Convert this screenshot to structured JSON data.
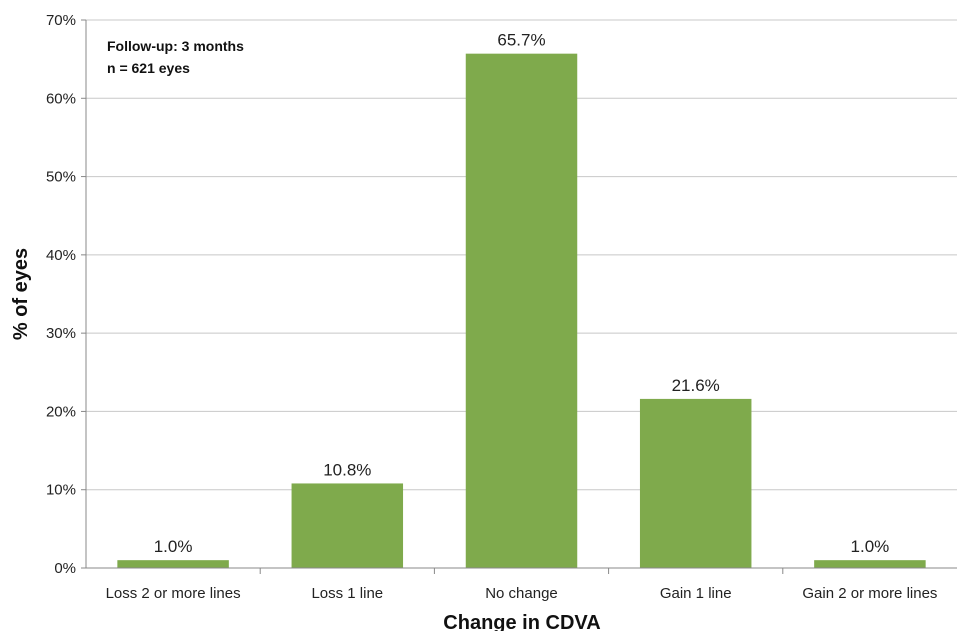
{
  "chart_data": {
    "type": "bar",
    "categories": [
      "Loss 2 or more lines",
      "Loss 1 line",
      "No change",
      "Gain 1 line",
      "Gain 2 or more lines"
    ],
    "values": [
      1.0,
      10.8,
      65.7,
      21.6,
      1.0
    ],
    "data_labels": [
      "1.0%",
      "10.8%",
      "65.7%",
      "21.6%",
      "1.0%"
    ],
    "title": "",
    "xlabel": "Change in CDVA",
    "ylabel": "% of eyes",
    "ylim": [
      0,
      70
    ],
    "yticks": [
      0,
      10,
      20,
      30,
      40,
      50,
      60,
      70
    ],
    "ytick_labels": [
      "0%",
      "10%",
      "20%",
      "30%",
      "40%",
      "50%",
      "60%",
      "70%"
    ],
    "grid": "horizontal",
    "bar_color": "#7faa4c",
    "annotations": [
      "Follow-up: 3 months",
      "n = 621 eyes"
    ]
  }
}
